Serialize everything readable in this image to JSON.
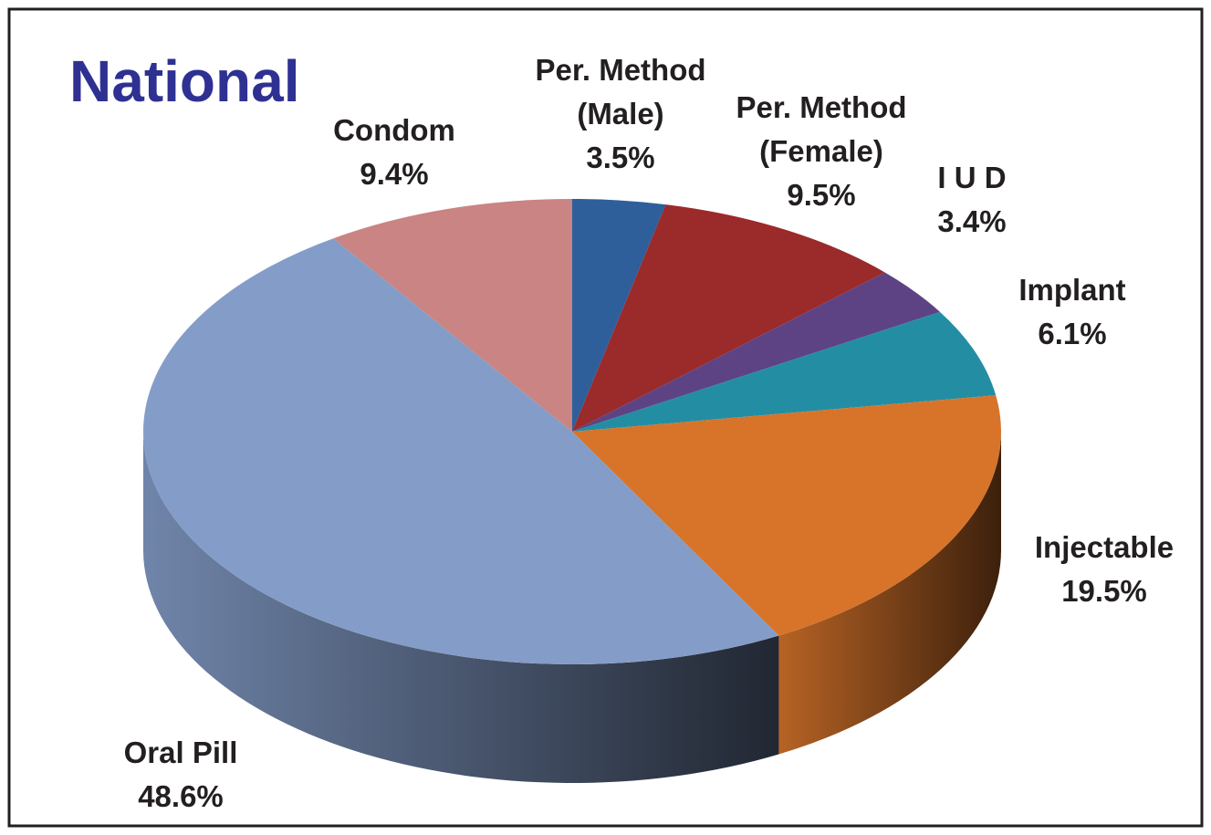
{
  "chart_data": {
    "type": "pie3d",
    "title": "National",
    "title_color": "#2e3192",
    "categories": [
      "Per. Method (Male)",
      "Per. Method (Female)",
      "I U D",
      "Implant",
      "Injectable",
      "Oral Pill",
      "Condom"
    ],
    "values": [
      3.5,
      9.5,
      3.4,
      6.1,
      19.5,
      48.6,
      9.4
    ],
    "value_labels": [
      "3.5%",
      "9.5%",
      "3.4%",
      "6.1%",
      "19.5%",
      "48.6%",
      "9.4%"
    ],
    "colors": [
      "#2e5f9a",
      "#9b2a2a",
      "#5e4384",
      "#238ea3",
      "#d7742a",
      "#849dc8",
      "#c98483"
    ]
  }
}
